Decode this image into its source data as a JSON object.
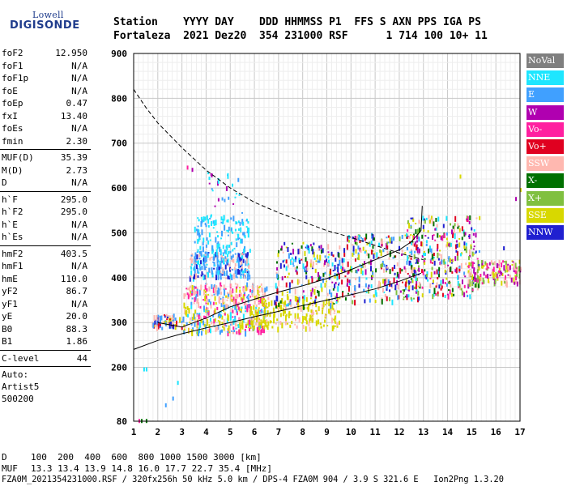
{
  "logo": {
    "top": "Lowell",
    "bottom": "DIGISONDE"
  },
  "header": {
    "line1": "Station    YYYY DAY    DDD HHMMSS P1  FFS S AXN PPS IGA PS",
    "line2": "Fortaleza  2021 Dez20  354 231000 RSF      1 714 100 10+ 11"
  },
  "params": [
    {
      "label": "foF2",
      "value": "12.950"
    },
    {
      "label": "foF1",
      "value": "N/A"
    },
    {
      "label": "foF1p",
      "value": "N/A"
    },
    {
      "label": "foE",
      "value": "N/A"
    },
    {
      "label": "foEp",
      "value": "0.47"
    },
    {
      "label": "fxI",
      "value": "13.40"
    },
    {
      "label": "foEs",
      "value": "N/A"
    },
    {
      "label": "fmin",
      "value": "2.30"
    },
    {
      "label": "MUF(D)",
      "value": "35.39"
    },
    {
      "label": "M(D)",
      "value": "2.73"
    },
    {
      "label": "D",
      "value": "N/A"
    },
    {
      "label": "h`F",
      "value": "295.0"
    },
    {
      "label": "h`F2",
      "value": "295.0"
    },
    {
      "label": "h`E",
      "value": "N/A"
    },
    {
      "label": "h`Es",
      "value": "N/A"
    },
    {
      "label": "hmF2",
      "value": "403.5"
    },
    {
      "label": "hmF1",
      "value": "N/A"
    },
    {
      "label": "hmE",
      "value": "110.0"
    },
    {
      "label": "yF2",
      "value": "86.7"
    },
    {
      "label": "yF1",
      "value": "N/A"
    },
    {
      "label": "yE",
      "value": "20.0"
    },
    {
      "label": "B0",
      "value": "88.3"
    },
    {
      "label": "B1",
      "value": "1.86"
    },
    {
      "label": "C-level",
      "value": "44"
    }
  ],
  "auto": {
    "line1": "Auto:",
    "line2": "Artist5",
    "line3": "500200"
  },
  "legend": [
    {
      "label": "NoVal",
      "color": "#7f7f7f"
    },
    {
      "label": "NNE",
      "color": "#1ee6ff"
    },
    {
      "label": "E",
      "color": "#40a0ff"
    },
    {
      "label": "W",
      "color": "#b000b0"
    },
    {
      "label": "Vo-",
      "color": "#ff20a0"
    },
    {
      "label": "Vo+",
      "color": "#e00020"
    },
    {
      "label": "SSW",
      "color": "#ffb8b0"
    },
    {
      "label": "X-",
      "color": "#007000"
    },
    {
      "label": "X+",
      "color": "#80c040"
    },
    {
      "label": "SSE",
      "color": "#d8d800"
    },
    {
      "label": "NNW",
      "color": "#2020d0"
    }
  ],
  "footer": {
    "d_label": "D",
    "d_values": "100  200  400  600  800 1000 1500 3000 [km]",
    "muf_label": "MUF",
    "muf_values": "13.3 13.4 13.9 14.8 16.0 17.7 22.7 35.4 [MHz]",
    "file_line": "FZA0M_2021354231000.RSF / 320fx256h 50 kHz 5.0 km / DPS-4 FZA0M 904 / 3.9 S 321.6 E   Ion2Png 1.3.20"
  },
  "chart_data": {
    "type": "scatter",
    "xlim": [
      1,
      17
    ],
    "ylim": [
      80,
      900
    ],
    "x_ticks": [
      1,
      2,
      3,
      4,
      5,
      6,
      7,
      8,
      9,
      10,
      11,
      12,
      13,
      14,
      15,
      16,
      17
    ],
    "y_ticks": [
      80,
      200,
      300,
      400,
      500,
      600,
      700,
      800,
      900
    ],
    "grid": true,
    "legend_position": "right",
    "clusters": [
      {
        "x0": 1.7,
        "x1": 3.0,
        "y0": 290,
        "y1": 320,
        "colors": [
          "SSE",
          "SSW",
          "Vo+",
          "E",
          "NNW"
        ],
        "n": 70
      },
      {
        "x0": 3.0,
        "x1": 6.5,
        "y0": 280,
        "y1": 340,
        "colors": [
          "SSE",
          "SSE",
          "SSW",
          "Vo-",
          "NNE",
          "E"
        ],
        "n": 260
      },
      {
        "x0": 3.0,
        "x1": 6.5,
        "y0": 340,
        "y1": 390,
        "colors": [
          "SSW",
          "SSW",
          "SSE",
          "E",
          "Vo-"
        ],
        "n": 200
      },
      {
        "x0": 3.3,
        "x1": 5.8,
        "y0": 400,
        "y1": 460,
        "colors": [
          "E",
          "NNE",
          "E",
          "NNW",
          "SSW"
        ],
        "n": 240
      },
      {
        "x0": 3.5,
        "x1": 5.8,
        "y0": 460,
        "y1": 540,
        "colors": [
          "E",
          "NNE",
          "NNE"
        ],
        "n": 120
      },
      {
        "x0": 5.8,
        "x1": 9.5,
        "y0": 290,
        "y1": 360,
        "colors": [
          "SSE",
          "SSE",
          "SSW",
          "SSE"
        ],
        "n": 200
      },
      {
        "x0": 6.8,
        "x1": 9.8,
        "y0": 340,
        "y1": 480,
        "colors": [
          "NNW",
          "W",
          "SSW",
          "E",
          "SSE",
          "Vo+",
          "NNE",
          "X-"
        ],
        "n": 240
      },
      {
        "x0": 9.8,
        "x1": 12.8,
        "y0": 350,
        "y1": 500,
        "colors": [
          "NNW",
          "W",
          "Vo+",
          "SSW",
          "SSE",
          "X-",
          "E",
          "NNE",
          "X+"
        ],
        "n": 280
      },
      {
        "x0": 12.3,
        "x1": 15.3,
        "y0": 360,
        "y1": 540,
        "colors": [
          "NNE",
          "E",
          "W",
          "Vo-",
          "Vo+",
          "NNW",
          "X-",
          "X+",
          "SSW",
          "SSE"
        ],
        "n": 320
      },
      {
        "x0": 14.8,
        "x1": 17.0,
        "y0": 390,
        "y1": 440,
        "colors": [
          "W",
          "SSW",
          "SSE",
          "Vo-",
          "X+"
        ],
        "n": 140
      },
      {
        "x0": 4.0,
        "x1": 5.5,
        "y0": 540,
        "y1": 640,
        "colors": [
          "NNE",
          "E",
          "W"
        ],
        "n": 25
      }
    ],
    "isolated_points": [
      {
        "x": 1.4,
        "y": 200,
        "c": "NNE"
      },
      {
        "x": 1.5,
        "y": 200,
        "c": "NNE"
      },
      {
        "x": 1.3,
        "y": 85,
        "c": "X-"
      },
      {
        "x": 1.5,
        "y": 85,
        "c": "X-"
      },
      {
        "x": 1.2,
        "y": 85,
        "c": "Vo-"
      },
      {
        "x": 2.3,
        "y": 120,
        "c": "E"
      },
      {
        "x": 2.6,
        "y": 135,
        "c": "E"
      },
      {
        "x": 2.8,
        "y": 170,
        "c": "NNE"
      },
      {
        "x": 3.2,
        "y": 650,
        "c": "Vo-"
      },
      {
        "x": 3.4,
        "y": 645,
        "c": "W"
      },
      {
        "x": 14.5,
        "y": 630,
        "c": "SSE"
      },
      {
        "x": 16.8,
        "y": 580,
        "c": "W"
      },
      {
        "x": 17.0,
        "y": 600,
        "c": "SSE"
      },
      {
        "x": 16.3,
        "y": 470,
        "c": "NNW"
      }
    ],
    "dashed_curve": [
      [
        1.0,
        820
      ],
      [
        1.5,
        780
      ],
      [
        2.0,
        745
      ],
      [
        3.0,
        690
      ],
      [
        4.0,
        640
      ],
      [
        5.0,
        600
      ],
      [
        6.0,
        568
      ],
      [
        7.0,
        545
      ],
      [
        8.0,
        525
      ],
      [
        9.0,
        505
      ],
      [
        10.0,
        490
      ],
      [
        11.0,
        472
      ],
      [
        12.0,
        455
      ],
      [
        13.0,
        440
      ]
    ],
    "lower_curve": [
      [
        1.0,
        240
      ],
      [
        2.0,
        260
      ],
      [
        3.0,
        275
      ],
      [
        4.0,
        288
      ],
      [
        5.0,
        300
      ],
      [
        6.0,
        313
      ],
      [
        7.0,
        325
      ],
      [
        8.0,
        338
      ],
      [
        9.0,
        350
      ],
      [
        10.0,
        362
      ],
      [
        11.0,
        375
      ],
      [
        12.0,
        392
      ],
      [
        12.9,
        410
      ]
    ],
    "trace_curve": [
      [
        2.0,
        300
      ],
      [
        3.0,
        290
      ],
      [
        3.5,
        300
      ],
      [
        4.0,
        310
      ],
      [
        5.0,
        335
      ],
      [
        6.0,
        352
      ],
      [
        7.0,
        368
      ],
      [
        8.0,
        382
      ],
      [
        9.0,
        398
      ],
      [
        10.0,
        418
      ],
      [
        11.0,
        440
      ],
      [
        12.0,
        462
      ],
      [
        12.5,
        480
      ],
      [
        12.9,
        505
      ],
      [
        12.95,
        560
      ]
    ]
  }
}
